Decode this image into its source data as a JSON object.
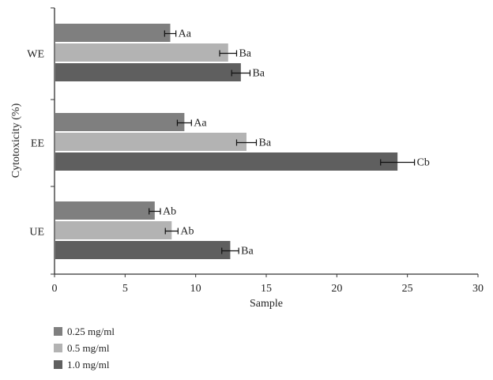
{
  "chart_data": {
    "type": "bar",
    "orientation": "horizontal",
    "title": "",
    "xlabel": "Sample",
    "ylabel": "Cytotoxicity (%)",
    "xlim": [
      0,
      30
    ],
    "xticks": [
      "0",
      "5",
      "10",
      "15",
      "20",
      "25",
      "30"
    ],
    "categories": [
      "WE",
      "EE",
      "UE"
    ],
    "series": [
      {
        "name": "0.25 mg/ml",
        "color": "#7f7f7f",
        "values": [
          8.2,
          9.2,
          7.1
        ],
        "errors": [
          0.4,
          0.5,
          0.4
        ],
        "labels": [
          "Aa",
          "Aa",
          "Ab"
        ]
      },
      {
        "name": "0.5 mg/ml",
        "color": "#b3b3b3",
        "values": [
          12.3,
          13.6,
          8.3
        ],
        "errors": [
          0.6,
          0.7,
          0.45
        ],
        "labels": [
          "Ba",
          "Ba",
          "Ab"
        ]
      },
      {
        "name": "1.0 mg/ml",
        "color": "#5f5f5f",
        "values": [
          13.2,
          24.3,
          12.45
        ],
        "errors": [
          0.65,
          1.2,
          0.6
        ],
        "labels": [
          "Ba",
          "Cb",
          "Ba"
        ]
      }
    ],
    "grid": false,
    "legend_position": "bottom-left"
  }
}
